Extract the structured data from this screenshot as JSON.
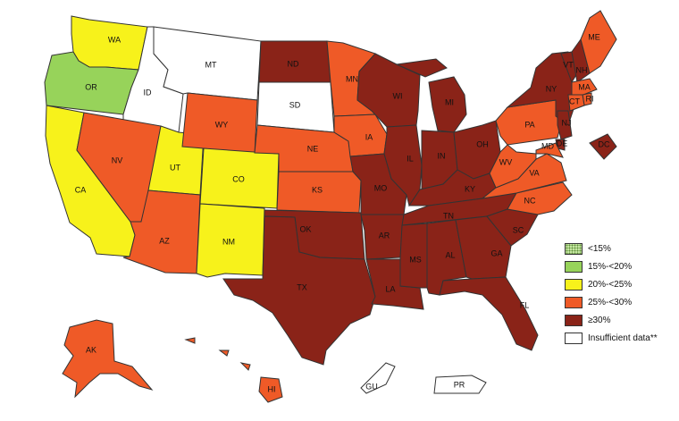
{
  "colors": {
    "lt15": "#c6e7a2",
    "c15_20": "#97d35a",
    "c20_25": "#f7f21b",
    "c25_30": "#ef5a27",
    "c30plus": "#8a2318",
    "insufficient": "#ffffff"
  },
  "legend": [
    {
      "label": "<15%",
      "color_key": "lt15",
      "pattern": "dots"
    },
    {
      "label": "15%-<20%",
      "color_key": "c15_20"
    },
    {
      "label": "20%-<25%",
      "color_key": "c20_25"
    },
    {
      "label": "25%-<30%",
      "color_key": "c25_30"
    },
    {
      "label": "≥30%",
      "color_key": "c30plus"
    },
    {
      "label": "Insufficient data**",
      "color_key": "insufficient"
    }
  ],
  "states": [
    {
      "abbr": "WA",
      "cat": "c20_25"
    },
    {
      "abbr": "OR",
      "cat": "c15_20"
    },
    {
      "abbr": "CA",
      "cat": "c20_25"
    },
    {
      "abbr": "ID",
      "cat": "insufficient"
    },
    {
      "abbr": "MT",
      "cat": "insufficient"
    },
    {
      "abbr": "NV",
      "cat": "c25_30"
    },
    {
      "abbr": "UT",
      "cat": "c20_25"
    },
    {
      "abbr": "WY",
      "cat": "c25_30"
    },
    {
      "abbr": "CO",
      "cat": "c20_25"
    },
    {
      "abbr": "AZ",
      "cat": "c25_30"
    },
    {
      "abbr": "NM",
      "cat": "c20_25"
    },
    {
      "abbr": "ND",
      "cat": "c30plus"
    },
    {
      "abbr": "SD",
      "cat": "insufficient"
    },
    {
      "abbr": "NE",
      "cat": "c25_30"
    },
    {
      "abbr": "KS",
      "cat": "c25_30"
    },
    {
      "abbr": "OK",
      "cat": "c30plus"
    },
    {
      "abbr": "TX",
      "cat": "c30plus"
    },
    {
      "abbr": "MN",
      "cat": "c25_30"
    },
    {
      "abbr": "IA",
      "cat": "c25_30"
    },
    {
      "abbr": "MO",
      "cat": "c30plus"
    },
    {
      "abbr": "AR",
      "cat": "c30plus"
    },
    {
      "abbr": "LA",
      "cat": "c30plus"
    },
    {
      "abbr": "WI",
      "cat": "c30plus"
    },
    {
      "abbr": "IL",
      "cat": "c30plus"
    },
    {
      "abbr": "MI",
      "cat": "c30plus"
    },
    {
      "abbr": "IN",
      "cat": "c30plus"
    },
    {
      "abbr": "OH",
      "cat": "c30plus"
    },
    {
      "abbr": "KY",
      "cat": "c30plus"
    },
    {
      "abbr": "TN",
      "cat": "c30plus"
    },
    {
      "abbr": "MS",
      "cat": "c30plus"
    },
    {
      "abbr": "AL",
      "cat": "c30plus"
    },
    {
      "abbr": "GA",
      "cat": "c30plus"
    },
    {
      "abbr": "FL",
      "cat": "c30plus"
    },
    {
      "abbr": "SC",
      "cat": "c30plus"
    },
    {
      "abbr": "NC",
      "cat": "c25_30"
    },
    {
      "abbr": "VA",
      "cat": "c25_30"
    },
    {
      "abbr": "WV",
      "cat": "c25_30"
    },
    {
      "abbr": "PA",
      "cat": "c25_30"
    },
    {
      "abbr": "NY",
      "cat": "c30plus"
    },
    {
      "abbr": "VT",
      "cat": "c30plus"
    },
    {
      "abbr": "NH",
      "cat": "c30plus"
    },
    {
      "abbr": "ME",
      "cat": "c25_30"
    },
    {
      "abbr": "MA",
      "cat": "c25_30"
    },
    {
      "abbr": "RI",
      "cat": "c25_30"
    },
    {
      "abbr": "CT",
      "cat": "c25_30"
    },
    {
      "abbr": "NJ",
      "cat": "c30plus"
    },
    {
      "abbr": "DE",
      "cat": "c30plus"
    },
    {
      "abbr": "MD",
      "cat": "c25_30"
    },
    {
      "abbr": "DC",
      "cat": "c30plus"
    },
    {
      "abbr": "AK",
      "cat": "c25_30"
    },
    {
      "abbr": "HI",
      "cat": "c25_30"
    },
    {
      "abbr": "GU",
      "cat": "insufficient"
    },
    {
      "abbr": "PR",
      "cat": "insufficient"
    }
  ]
}
